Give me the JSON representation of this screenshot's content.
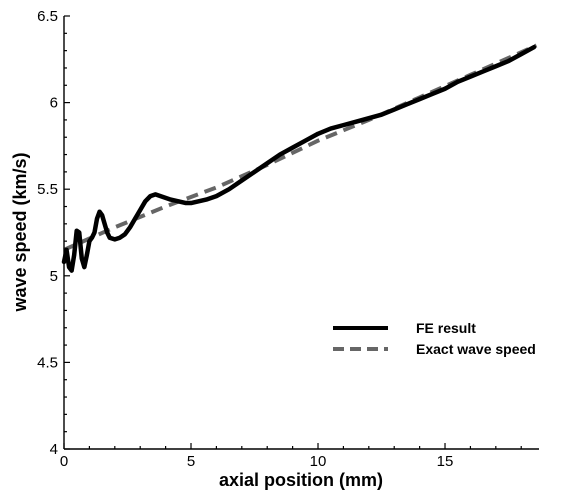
{
  "chart_data": {
    "type": "line",
    "xlabel": "axial position (mm)",
    "ylabel": "wave speed (km/s)",
    "xlim": [
      0,
      18.7
    ],
    "ylim": [
      4,
      6.5
    ],
    "x_ticks": [
      0,
      5,
      10,
      15
    ],
    "x_tick_labels": [
      "0",
      "5",
      "10",
      "15"
    ],
    "y_ticks": [
      4,
      4.5,
      5,
      5.5,
      6,
      6.5
    ],
    "y_tick_labels": [
      "4",
      "4.5",
      "5",
      "5.5",
      "6",
      "6.5"
    ],
    "legend_position": "lower-right",
    "grid": false,
    "series": [
      {
        "name": "FE result",
        "color": "#000000",
        "style": "solid",
        "x": [
          0.0,
          0.1,
          0.2,
          0.3,
          0.4,
          0.5,
          0.6,
          0.7,
          0.8,
          0.9,
          1.0,
          1.1,
          1.2,
          1.3,
          1.4,
          1.5,
          1.6,
          1.7,
          1.8,
          2.0,
          2.2,
          2.4,
          2.6,
          2.8,
          3.0,
          3.2,
          3.4,
          3.6,
          3.8,
          4.0,
          4.2,
          4.5,
          4.8,
          5.0,
          5.3,
          5.6,
          6.0,
          6.5,
          7.0,
          7.5,
          8.0,
          8.5,
          9.0,
          9.5,
          10.0,
          10.5,
          11.0,
          11.5,
          12.0,
          12.5,
          13.0,
          13.5,
          14.0,
          14.5,
          15.0,
          15.5,
          16.0,
          16.5,
          17.0,
          17.5,
          18.0,
          18.5
        ],
        "y": [
          5.08,
          5.15,
          5.05,
          5.03,
          5.12,
          5.26,
          5.25,
          5.1,
          5.05,
          5.12,
          5.2,
          5.22,
          5.25,
          5.33,
          5.37,
          5.35,
          5.3,
          5.25,
          5.22,
          5.21,
          5.22,
          5.24,
          5.28,
          5.33,
          5.38,
          5.43,
          5.46,
          5.47,
          5.46,
          5.45,
          5.44,
          5.43,
          5.42,
          5.42,
          5.43,
          5.44,
          5.46,
          5.5,
          5.55,
          5.6,
          5.65,
          5.7,
          5.74,
          5.78,
          5.82,
          5.85,
          5.87,
          5.89,
          5.91,
          5.93,
          5.96,
          5.99,
          6.02,
          6.05,
          6.08,
          6.12,
          6.15,
          6.18,
          6.21,
          6.24,
          6.28,
          6.32
        ]
      },
      {
        "name": "Exact wave speed",
        "color": "#666666",
        "style": "dashed",
        "x": [
          0.0,
          2.0,
          4.0,
          6.0,
          8.0,
          10.0,
          12.0,
          14.0,
          16.0,
          18.6
        ],
        "y": [
          5.15,
          5.28,
          5.4,
          5.51,
          5.64,
          5.78,
          5.9,
          6.03,
          6.16,
          6.33
        ]
      }
    ]
  }
}
